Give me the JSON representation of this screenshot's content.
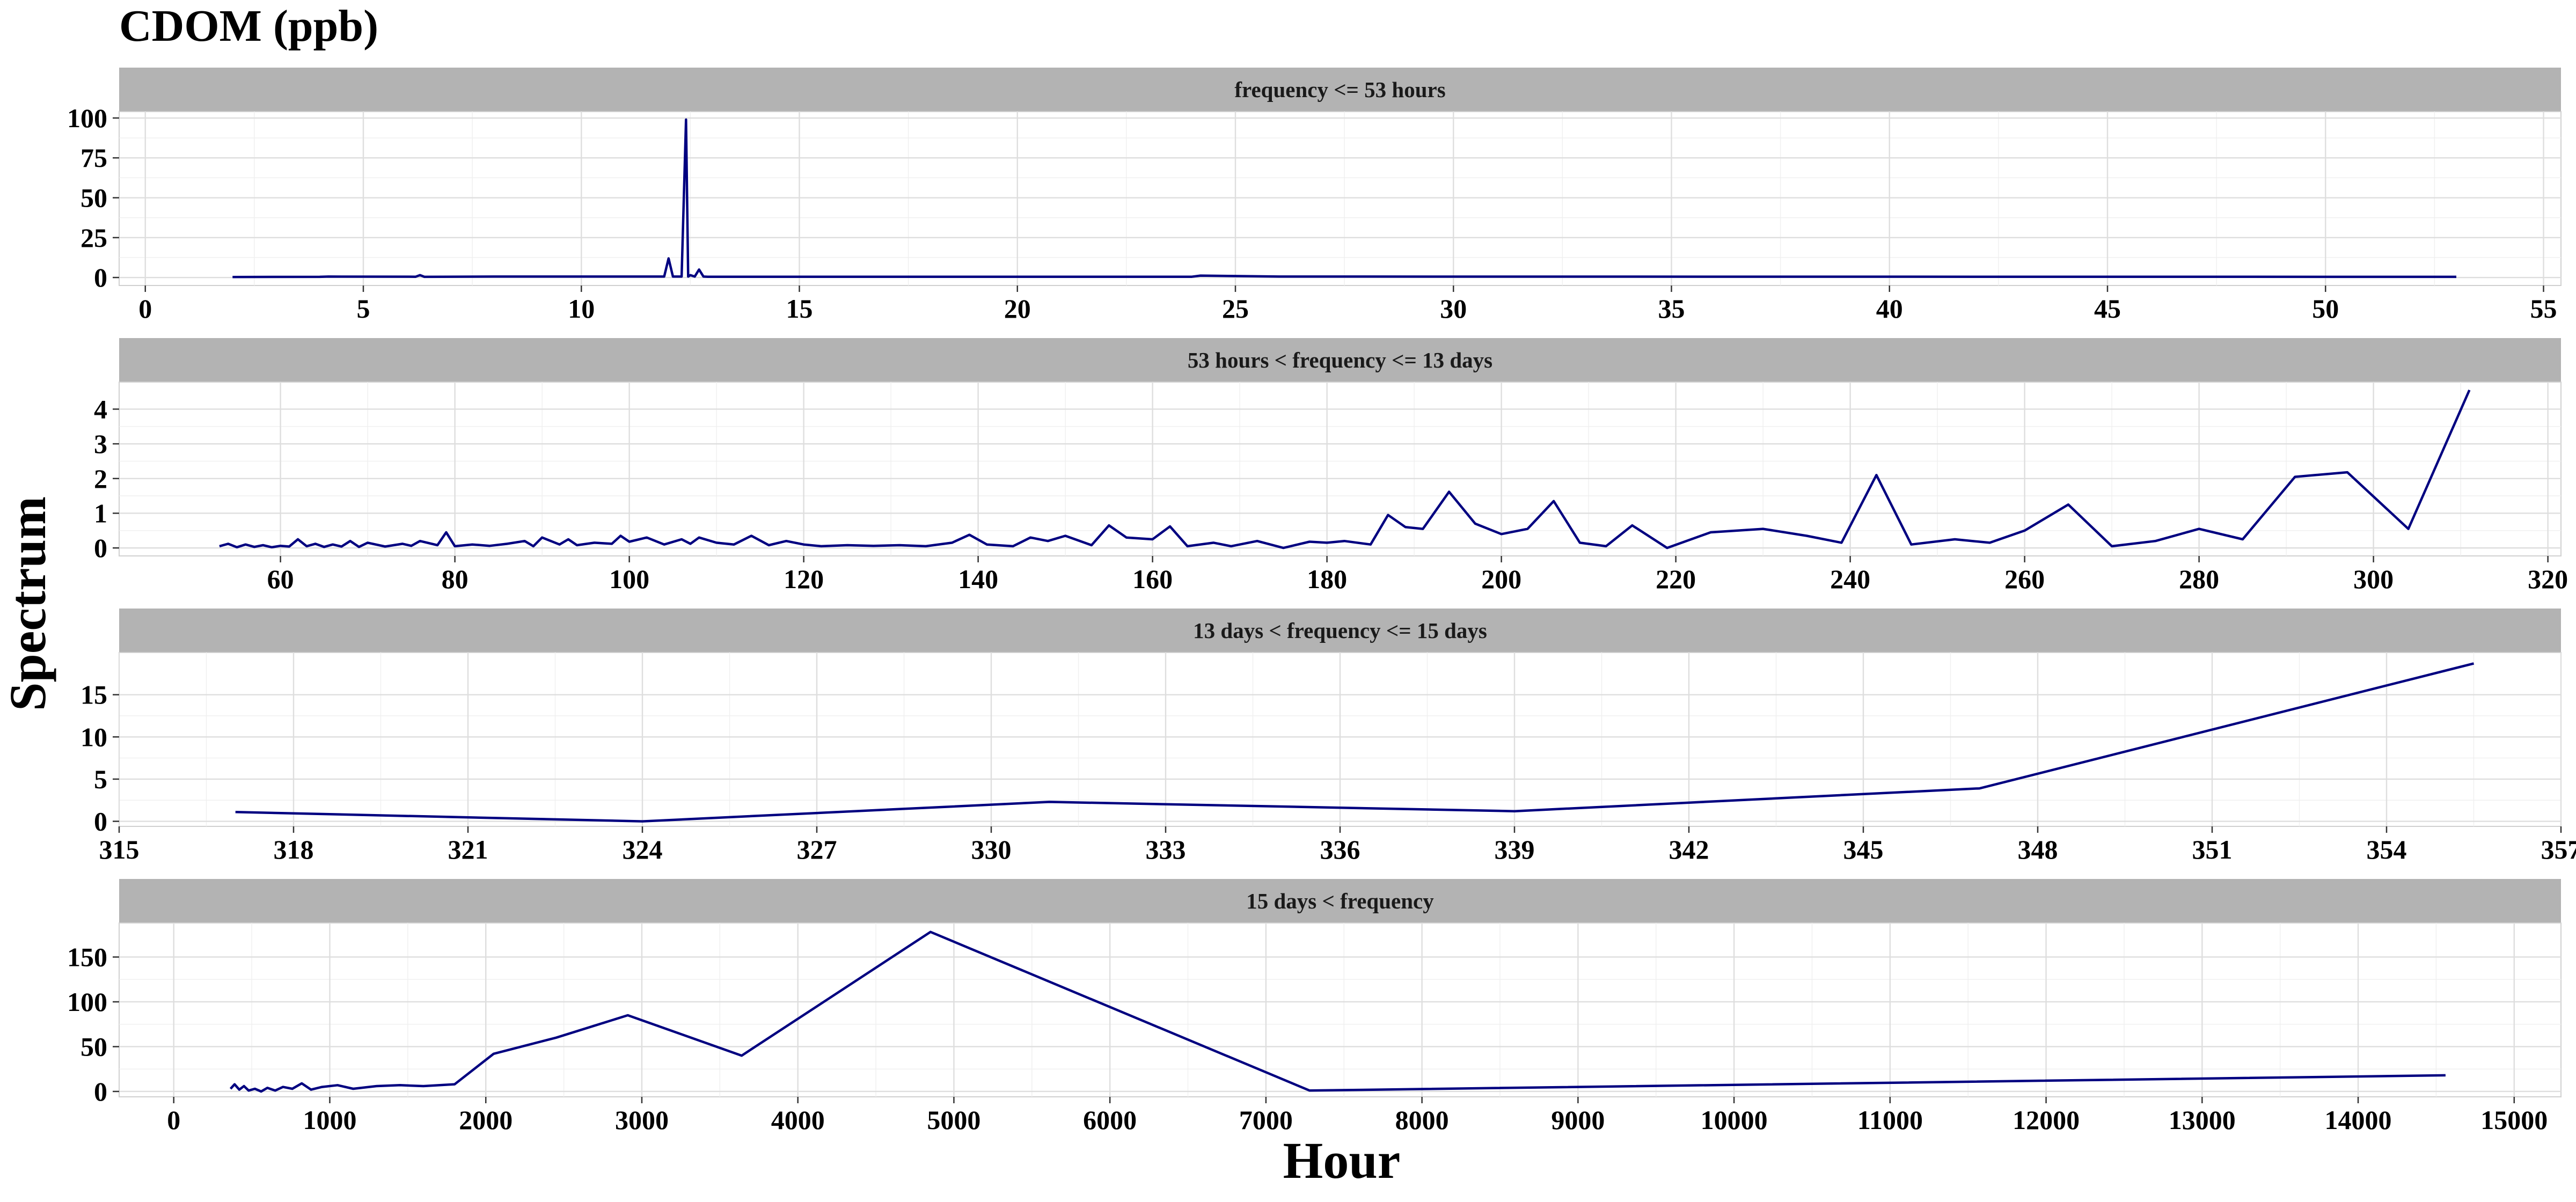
{
  "chart_data": {
    "type": "line",
    "title": "CDOM (ppb)",
    "xlabel": "Hour",
    "ylabel": "Spectrum",
    "grid": true,
    "line_color": "#000080",
    "strip_color": "#b3b3b3",
    "panels": [
      {
        "strip": "frequency <= 53 hours",
        "xlim": [
          -0.6,
          55.4
        ],
        "ylim": [
          -5,
          104
        ],
        "x_ticks": [
          0,
          5,
          10,
          15,
          20,
          25,
          30,
          35,
          40,
          45,
          50,
          55
        ],
        "x_tick_labels": [
          "0",
          "5",
          "10",
          "15",
          "20",
          "25",
          "30",
          "35",
          "40",
          "45",
          "50",
          "55"
        ],
        "y_ticks": [
          0,
          25,
          50,
          75,
          100
        ],
        "y_tick_labels": [
          "0",
          "25",
          "50",
          "75",
          "100"
        ],
        "x": [
          2,
          4,
          4.2,
          6.2,
          6.3,
          6.4,
          8,
          11.9,
          12.0,
          12.1,
          12.3,
          12.4,
          12.45,
          12.5,
          12.6,
          12.7,
          12.8,
          12.9,
          24,
          24.2,
          26,
          53
        ],
        "y": [
          0.3,
          0.4,
          0.6,
          0.5,
          1.5,
          0.4,
          0.6,
          0.6,
          12,
          0.6,
          0.6,
          99,
          0.6,
          1.5,
          0.6,
          5,
          0.6,
          0.5,
          0.5,
          1.2,
          0.6,
          0.4
        ]
      },
      {
        "strip": "53 hours < frequency <= 13 days",
        "xlim": [
          41.5,
          321.5
        ],
        "ylim": [
          -0.23,
          4.78
        ],
        "x_ticks": [
          60,
          80,
          100,
          120,
          140,
          160,
          180,
          200,
          220,
          240,
          260,
          280,
          300,
          320
        ],
        "x_tick_labels": [
          "60",
          "80",
          "100",
          "120",
          "140",
          "160",
          "180",
          "200",
          "220",
          "240",
          "260",
          "280",
          "300",
          "320"
        ],
        "y_ticks": [
          0,
          1,
          2,
          3,
          4
        ],
        "y_tick_labels": [
          "0",
          "1",
          "2",
          "3",
          "4"
        ],
        "x": [
          53,
          54,
          55,
          56,
          57,
          58,
          59,
          60,
          61,
          62,
          63,
          64,
          65,
          66,
          67,
          68,
          69,
          70,
          72,
          74,
          75,
          76,
          78,
          79,
          80,
          82,
          84,
          86,
          88,
          89,
          90,
          92,
          93,
          94,
          96,
          98,
          99,
          100,
          102,
          104,
          106,
          107,
          108,
          110,
          112,
          114,
          116,
          118,
          120,
          122,
          125,
          128,
          131,
          134,
          137,
          139,
          141,
          144,
          146,
          148,
          150,
          153,
          155,
          157,
          160,
          162,
          164,
          167,
          169,
          172,
          175,
          178,
          180,
          182,
          185,
          187,
          189,
          191,
          194,
          197,
          200,
          203,
          206,
          209,
          212,
          215,
          219,
          224,
          230,
          235,
          239,
          243,
          247,
          252,
          256,
          260,
          265,
          270,
          275,
          280,
          285,
          291,
          297,
          304,
          311
        ],
        "y": [
          0.05,
          0.12,
          0.02,
          0.1,
          0.03,
          0.08,
          0.02,
          0.06,
          0.04,
          0.25,
          0.05,
          0.12,
          0.03,
          0.1,
          0.04,
          0.2,
          0.03,
          0.15,
          0.04,
          0.12,
          0.06,
          0.2,
          0.08,
          0.45,
          0.05,
          0.1,
          0.06,
          0.12,
          0.2,
          0.05,
          0.3,
          0.1,
          0.25,
          0.08,
          0.15,
          0.12,
          0.35,
          0.18,
          0.3,
          0.1,
          0.25,
          0.12,
          0.3,
          0.15,
          0.1,
          0.35,
          0.08,
          0.2,
          0.1,
          0.05,
          0.08,
          0.06,
          0.08,
          0.05,
          0.15,
          0.38,
          0.1,
          0.05,
          0.3,
          0.2,
          0.35,
          0.08,
          0.65,
          0.3,
          0.25,
          0.62,
          0.05,
          0.15,
          0.05,
          0.2,
          0.0,
          0.18,
          0.15,
          0.2,
          0.1,
          0.95,
          0.6,
          0.55,
          1.62,
          0.7,
          0.4,
          0.55,
          1.35,
          0.15,
          0.05,
          0.65,
          0.0,
          0.45,
          0.55,
          0.35,
          0.15,
          2.1,
          0.1,
          0.25,
          0.15,
          0.5,
          1.25,
          0.05,
          0.2,
          0.55,
          0.25,
          2.05,
          2.18,
          0.55,
          4.55
        ]
      },
      {
        "strip": "13 days < frequency <= 15 days",
        "xlim": [
          315,
          357
        ],
        "ylim": [
          -0.6,
          20
        ],
        "x_ticks": [
          315,
          318,
          321,
          324,
          327,
          330,
          333,
          336,
          339,
          342,
          345,
          348,
          351,
          354,
          357
        ],
        "x_tick_labels": [
          "315",
          "318",
          "321",
          "324",
          "327",
          "330",
          "333",
          "336",
          "339",
          "342",
          "345",
          "348",
          "351",
          "354",
          "357"
        ],
        "y_ticks": [
          0,
          5,
          10,
          15
        ],
        "y_tick_labels": [
          "0",
          "5",
          "10",
          "15"
        ],
        "x": [
          317,
          324,
          331,
          339,
          347,
          355.5
        ],
        "y": [
          1.1,
          0.0,
          2.3,
          1.2,
          3.9,
          18.7
        ]
      },
      {
        "strip": "15 days < frequency",
        "xlim": [
          -350,
          15300
        ],
        "ylim": [
          -6,
          188
        ],
        "x_ticks": [
          0,
          1000,
          2000,
          3000,
          4000,
          5000,
          6000,
          7000,
          8000,
          9000,
          10000,
          11000,
          12000,
          13000,
          14000,
          15000
        ],
        "x_tick_labels": [
          "0",
          "1000",
          "2000",
          "3000",
          "4000",
          "5000",
          "6000",
          "7000",
          "8000",
          "9000",
          "10000",
          "11000",
          "12000",
          "13000",
          "14000",
          "15000"
        ],
        "y_ticks": [
          0,
          50,
          100,
          150
        ],
        "y_tick_labels": [
          "0",
          "50",
          "100",
          "150"
        ],
        "x": [
          364,
          390,
          420,
          450,
          480,
          520,
          560,
          600,
          650,
          700,
          760,
          820,
          880,
          950,
          1050,
          1150,
          1300,
          1450,
          1600,
          1800,
          2050,
          2450,
          2910,
          3640,
          4850,
          7280,
          14560
        ],
        "y": [
          3,
          8,
          2,
          6,
          1,
          3,
          0,
          4,
          1,
          5,
          3,
          9,
          2,
          5,
          7,
          3,
          6,
          7,
          6,
          8,
          42,
          60,
          85,
          40,
          178,
          1,
          18
        ]
      }
    ]
  }
}
